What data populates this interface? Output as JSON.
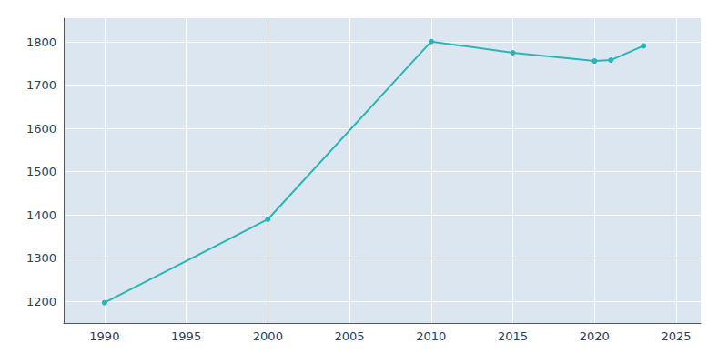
{
  "chart_data": {
    "type": "line",
    "x": [
      1990,
      2000,
      2010,
      2015,
      2020,
      2021,
      2023
    ],
    "values": [
      1197,
      1390,
      1801,
      1775,
      1756,
      1758,
      1791
    ],
    "color": "#2ab5b5",
    "marker": "circle",
    "xlim": [
      1987.5,
      2026.5
    ],
    "ylim": [
      1150,
      1855
    ],
    "xticks": [
      1990,
      1995,
      2000,
      2005,
      2010,
      2015,
      2020,
      2025
    ],
    "yticks": [
      1200,
      1300,
      1400,
      1500,
      1600,
      1700,
      1800
    ],
    "grid": true
  }
}
